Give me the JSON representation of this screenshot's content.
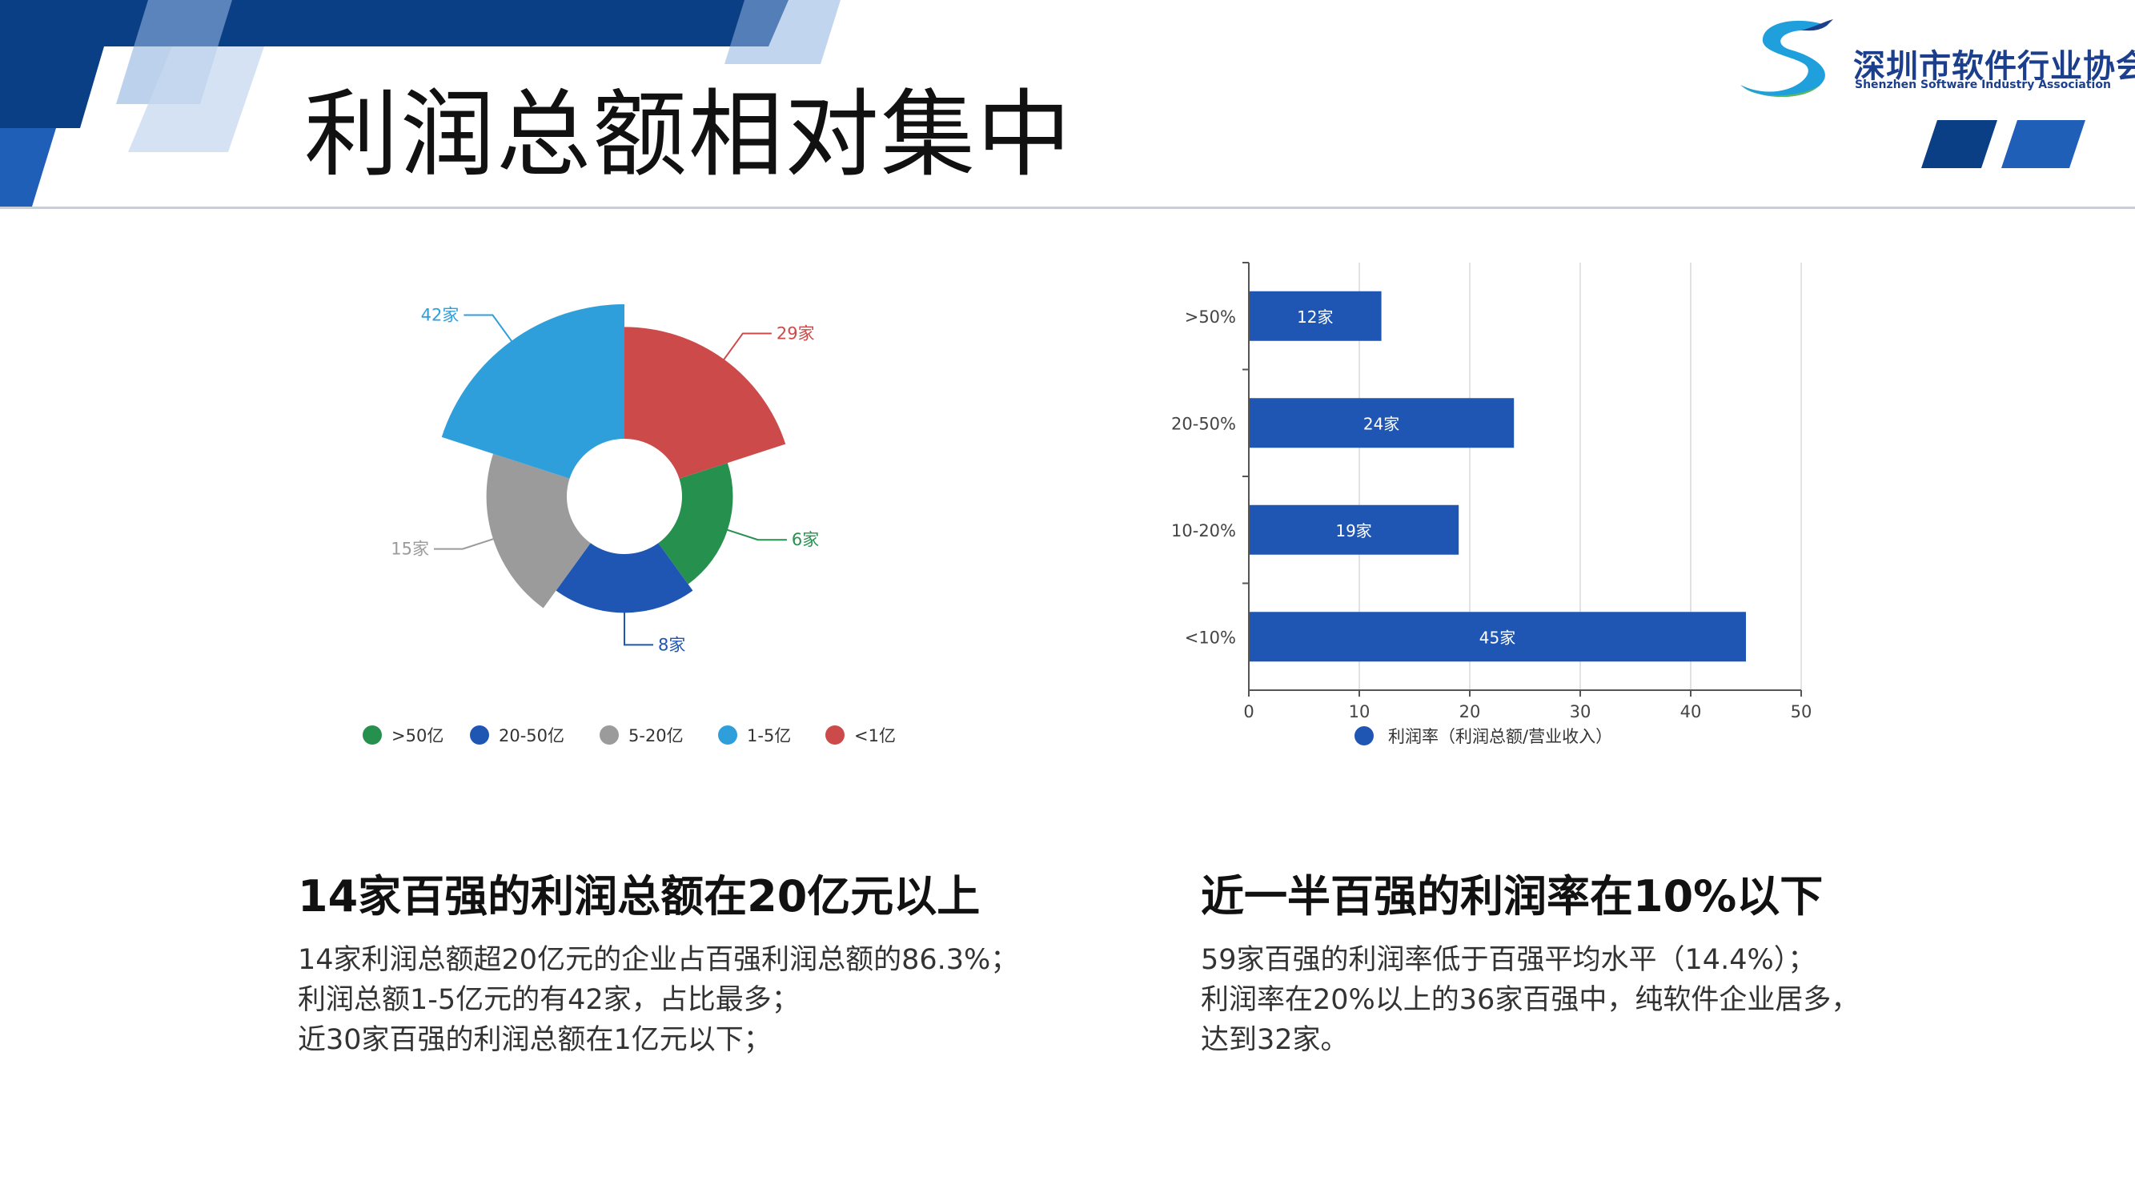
{
  "page": {
    "title": "利润总额相对集中",
    "logo": {
      "name_cn": "深圳市软件行业协会",
      "name_en": "Shenzhen Software Industry Association"
    }
  },
  "colors": {
    "primary_blue": "#1f56b3",
    "dark_blue": "#0a3f86",
    "green": "#26914f",
    "gray": "#9b9b9b",
    "light_blue": "#2f9fdc",
    "red": "#cd4a4a"
  },
  "chart_data": [
    {
      "type": "pie",
      "subtype": "rose",
      "title": "",
      "slices": [
        {
          "label": ">50亿",
          "value": 6,
          "data_label": "6家",
          "color": "#26914f"
        },
        {
          "label": "20-50亿",
          "value": 8,
          "data_label": "8家",
          "color": "#1f56b3"
        },
        {
          "label": "5-20亿",
          "value": 15,
          "data_label": "15家",
          "color": "#9b9b9b"
        },
        {
          "label": "1-5亿",
          "value": 42,
          "data_label": "42家",
          "color": "#2f9fdc"
        },
        {
          "label": "<1亿",
          "value": 29,
          "data_label": "29家",
          "color": "#cd4a4a"
        }
      ],
      "legend_position": "bottom"
    },
    {
      "type": "bar",
      "orientation": "horizontal",
      "title": "",
      "categories": [
        ">50%",
        "20-50%",
        "10-20%",
        "<10%"
      ],
      "series": [
        {
          "name": "利润率（利润总额/营业收入）",
          "values": [
            12,
            24,
            19,
            45
          ],
          "data_labels": [
            "12家",
            "24家",
            "19家",
            "45家"
          ],
          "color": "#1f56b3"
        }
      ],
      "xlim": [
        0,
        50
      ],
      "xticks": [
        0,
        10,
        20,
        30,
        40,
        50
      ],
      "grid": true,
      "legend_position": "bottom"
    }
  ],
  "captions": {
    "left": {
      "heading": "14家百强的利润总额在20亿元以上",
      "lines": [
        "14家利润总额超20亿元的企业占百强利润总额的86.3%；",
        "利润总额1-5亿元的有42家，占比最多；",
        "近30家百强的利润总额在1亿元以下；"
      ]
    },
    "right": {
      "heading": "近一半百强的利润率在10%以下",
      "lines": [
        "59家百强的利润率低于百强平均水平（14.4%）；",
        "利润率在20%以上的36家百强中，纯软件企业居多，",
        "达到32家。"
      ]
    }
  }
}
